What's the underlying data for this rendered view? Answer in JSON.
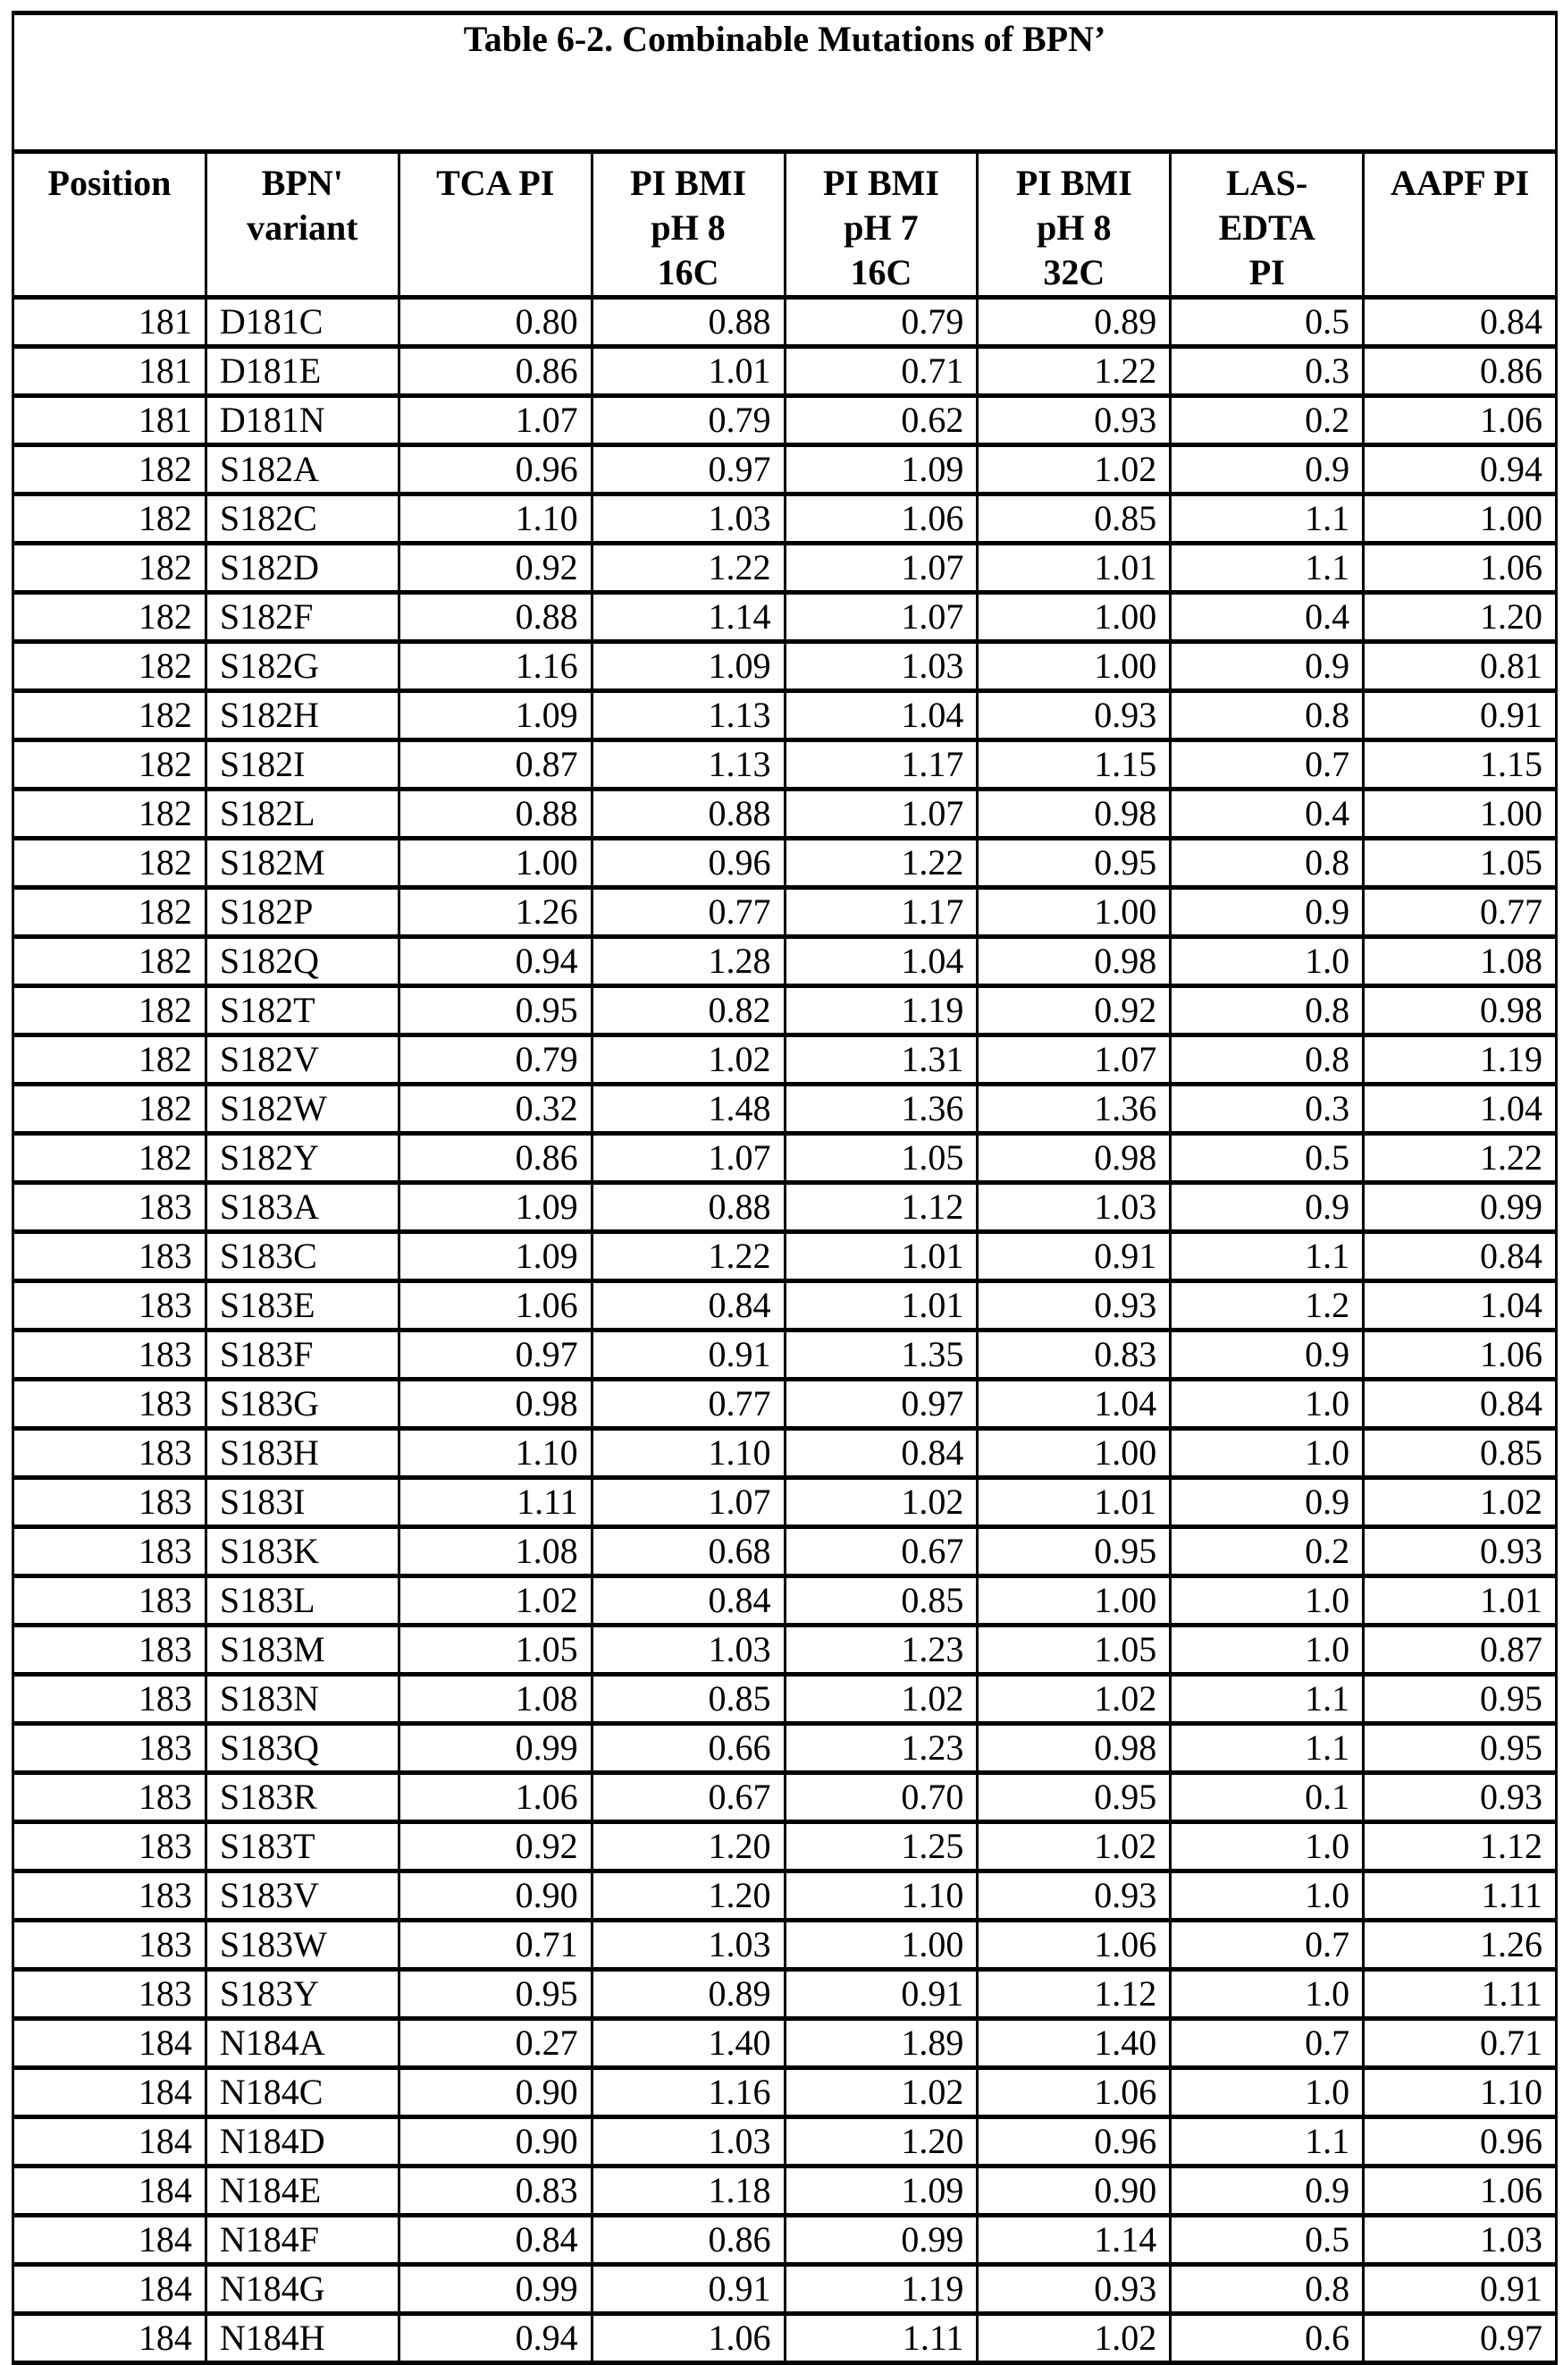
{
  "title": "Table 6-2.  Combinable Mutations of BPN’",
  "columns": [
    [
      "Position"
    ],
    [
      "BPN'",
      "variant"
    ],
    [
      "TCA PI"
    ],
    [
      "PI BMI",
      "pH 8",
      "16C"
    ],
    [
      "PI BMI",
      "pH 7",
      "16C"
    ],
    [
      "PI BMI",
      "pH 8",
      "32C"
    ],
    [
      "LAS-",
      "EDTA",
      "PI"
    ],
    [
      "AAPF PI"
    ]
  ],
  "rows": [
    [
      "181",
      "D181C",
      "0.80",
      "0.88",
      "0.79",
      "0.89",
      "0.5",
      "0.84"
    ],
    [
      "181",
      "D181E",
      "0.86",
      "1.01",
      "0.71",
      "1.22",
      "0.3",
      "0.86"
    ],
    [
      "181",
      "D181N",
      "1.07",
      "0.79",
      "0.62",
      "0.93",
      "0.2",
      "1.06"
    ],
    [
      "182",
      "S182A",
      "0.96",
      "0.97",
      "1.09",
      "1.02",
      "0.9",
      "0.94"
    ],
    [
      "182",
      "S182C",
      "1.10",
      "1.03",
      "1.06",
      "0.85",
      "1.1",
      "1.00"
    ],
    [
      "182",
      "S182D",
      "0.92",
      "1.22",
      "1.07",
      "1.01",
      "1.1",
      "1.06"
    ],
    [
      "182",
      "S182F",
      "0.88",
      "1.14",
      "1.07",
      "1.00",
      "0.4",
      "1.20"
    ],
    [
      "182",
      "S182G",
      "1.16",
      "1.09",
      "1.03",
      "1.00",
      "0.9",
      "0.81"
    ],
    [
      "182",
      "S182H",
      "1.09",
      "1.13",
      "1.04",
      "0.93",
      "0.8",
      "0.91"
    ],
    [
      "182",
      "S182I",
      "0.87",
      "1.13",
      "1.17",
      "1.15",
      "0.7",
      "1.15"
    ],
    [
      "182",
      "S182L",
      "0.88",
      "0.88",
      "1.07",
      "0.98",
      "0.4",
      "1.00"
    ],
    [
      "182",
      "S182M",
      "1.00",
      "0.96",
      "1.22",
      "0.95",
      "0.8",
      "1.05"
    ],
    [
      "182",
      "S182P",
      "1.26",
      "0.77",
      "1.17",
      "1.00",
      "0.9",
      "0.77"
    ],
    [
      "182",
      "S182Q",
      "0.94",
      "1.28",
      "1.04",
      "0.98",
      "1.0",
      "1.08"
    ],
    [
      "182",
      "S182T",
      "0.95",
      "0.82",
      "1.19",
      "0.92",
      "0.8",
      "0.98"
    ],
    [
      "182",
      "S182V",
      "0.79",
      "1.02",
      "1.31",
      "1.07",
      "0.8",
      "1.19"
    ],
    [
      "182",
      "S182W",
      "0.32",
      "1.48",
      "1.36",
      "1.36",
      "0.3",
      "1.04"
    ],
    [
      "182",
      "S182Y",
      "0.86",
      "1.07",
      "1.05",
      "0.98",
      "0.5",
      "1.22"
    ],
    [
      "183",
      "S183A",
      "1.09",
      "0.88",
      "1.12",
      "1.03",
      "0.9",
      "0.99"
    ],
    [
      "183",
      "S183C",
      "1.09",
      "1.22",
      "1.01",
      "0.91",
      "1.1",
      "0.84"
    ],
    [
      "183",
      "S183E",
      "1.06",
      "0.84",
      "1.01",
      "0.93",
      "1.2",
      "1.04"
    ],
    [
      "183",
      "S183F",
      "0.97",
      "0.91",
      "1.35",
      "0.83",
      "0.9",
      "1.06"
    ],
    [
      "183",
      "S183G",
      "0.98",
      "0.77",
      "0.97",
      "1.04",
      "1.0",
      "0.84"
    ],
    [
      "183",
      "S183H",
      "1.10",
      "1.10",
      "0.84",
      "1.00",
      "1.0",
      "0.85"
    ],
    [
      "183",
      "S183I",
      "1.11",
      "1.07",
      "1.02",
      "1.01",
      "0.9",
      "1.02"
    ],
    [
      "183",
      "S183K",
      "1.08",
      "0.68",
      "0.67",
      "0.95",
      "0.2",
      "0.93"
    ],
    [
      "183",
      "S183L",
      "1.02",
      "0.84",
      "0.85",
      "1.00",
      "1.0",
      "1.01"
    ],
    [
      "183",
      "S183M",
      "1.05",
      "1.03",
      "1.23",
      "1.05",
      "1.0",
      "0.87"
    ],
    [
      "183",
      "S183N",
      "1.08",
      "0.85",
      "1.02",
      "1.02",
      "1.1",
      "0.95"
    ],
    [
      "183",
      "S183Q",
      "0.99",
      "0.66",
      "1.23",
      "0.98",
      "1.1",
      "0.95"
    ],
    [
      "183",
      "S183R",
      "1.06",
      "0.67",
      "0.70",
      "0.95",
      "0.1",
      "0.93"
    ],
    [
      "183",
      "S183T",
      "0.92",
      "1.20",
      "1.25",
      "1.02",
      "1.0",
      "1.12"
    ],
    [
      "183",
      "S183V",
      "0.90",
      "1.20",
      "1.10",
      "0.93",
      "1.0",
      "1.11"
    ],
    [
      "183",
      "S183W",
      "0.71",
      "1.03",
      "1.00",
      "1.06",
      "0.7",
      "1.26"
    ],
    [
      "183",
      "S183Y",
      "0.95",
      "0.89",
      "0.91",
      "1.12",
      "1.0",
      "1.11"
    ],
    [
      "184",
      "N184A",
      "0.27",
      "1.40",
      "1.89",
      "1.40",
      "0.7",
      "0.71"
    ],
    [
      "184",
      "N184C",
      "0.90",
      "1.16",
      "1.02",
      "1.06",
      "1.0",
      "1.10"
    ],
    [
      "184",
      "N184D",
      "0.90",
      "1.03",
      "1.20",
      "0.96",
      "1.1",
      "0.96"
    ],
    [
      "184",
      "N184E",
      "0.83",
      "1.18",
      "1.09",
      "0.90",
      "0.9",
      "1.06"
    ],
    [
      "184",
      "N184F",
      "0.84",
      "0.86",
      "0.99",
      "1.14",
      "0.5",
      "1.03"
    ],
    [
      "184",
      "N184G",
      "0.99",
      "0.91",
      "1.19",
      "0.93",
      "0.8",
      "0.91"
    ],
    [
      "184",
      "N184H",
      "0.94",
      "1.06",
      "1.11",
      "1.02",
      "0.6",
      "0.97"
    ]
  ]
}
